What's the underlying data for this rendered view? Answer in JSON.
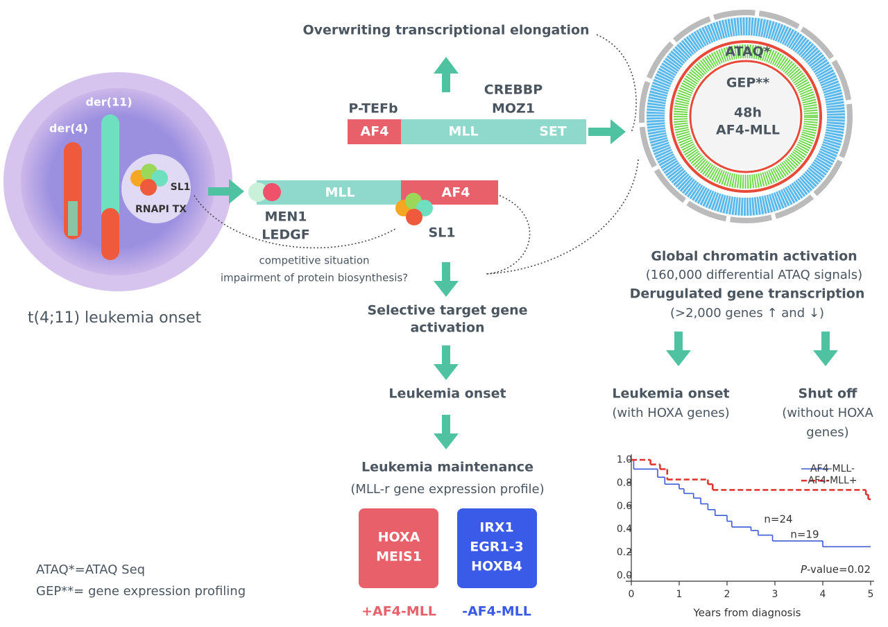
{
  "labels": {
    "elongation": "Overwriting transcriptional elongation",
    "crebbp": "CREBBP",
    "moz1": "MOZ1",
    "ptefb": "P-TEFb",
    "fusion1": [
      "AF4",
      "MLL",
      "SET"
    ],
    "fusion2": [
      "MLL",
      "AF4"
    ],
    "men1": "MEN1",
    "ledgf": "LEDGF",
    "sl1": "SL1",
    "der11": "der(11)",
    "der4": "der(4)",
    "nucleolus_sl1": "SL1",
    "rnapi": "RNAPI TX",
    "competitive": [
      "competitive situation",
      "impairment of protein biosynthesis?"
    ],
    "onset_cell": "t(4;11) leukemia onset",
    "selective": [
      "Selective target gene",
      "activation"
    ],
    "leukemia_onset": "Leukemia onset",
    "maintenance": "Leukemia maintenance",
    "profile": "(MLL-r gene expression profile)",
    "box_plus": [
      "HOXA",
      "MEIS1"
    ],
    "box_minus": [
      "IRX1",
      "EGR1-3",
      "HOXB4"
    ],
    "plus": "+AF4-MLL",
    "minus": "-AF4-MLL",
    "footnotes": [
      "ATAQ*=ATAQ Seq",
      "GEP**= gene expression profiling"
    ],
    "circos": [
      "ATAQ*",
      "GEP**",
      "48h",
      "AF4-MLL"
    ],
    "global": [
      "Global chromatin activation",
      "(160,000 differential ATAQ signals)",
      "Derugulated gene transcription",
      "(>2,000 genes ↑ and ↓)"
    ],
    "with_hoxa": [
      "Leukemia onset",
      "(with HOXA genes)"
    ],
    "without_hoxa": [
      "Shut off",
      "(without HOXA",
      "genes)"
    ]
  },
  "chart_data": {
    "type": "step",
    "xlabel": "Years from diagnosis",
    "xlim": [
      0,
      5
    ],
    "xticks": [
      0,
      1,
      2,
      3,
      4,
      5
    ],
    "ylim": [
      0,
      1
    ],
    "yticks": [
      {
        "value": 0,
        "label": "0.0"
      },
      0.2,
      0.4,
      0.6,
      0.8,
      {
        "value": 1,
        "label": "1.0"
      }
    ],
    "legend": "top-right",
    "series": [
      {
        "name": "AF4-MLL-",
        "color": "#3b5bd6",
        "dash": false,
        "x": [
          0,
          0.05,
          0.55,
          0.7,
          1.0,
          1.1,
          1.3,
          1.45,
          1.6,
          1.75,
          2.0,
          2.1,
          2.5,
          2.65,
          2.95,
          4.0
        ],
        "values": [
          1.0,
          0.92,
          0.85,
          0.79,
          0.75,
          0.71,
          0.67,
          0.62,
          0.57,
          0.52,
          0.47,
          0.42,
          0.39,
          0.35,
          0.3,
          0.25
        ]
      },
      {
        "name": "AF4-MLL+",
        "color": "#e0302a",
        "dash": true,
        "x": [
          0,
          0.4,
          0.6,
          0.75,
          1.6,
          1.7,
          4.9,
          4.95
        ],
        "values": [
          1.0,
          0.96,
          0.92,
          0.83,
          0.79,
          0.74,
          0.7,
          0.66
        ]
      }
    ],
    "annotations": [
      "n=24",
      "n=19"
    ],
    "pvalue": {
      "italic": "P",
      "text": "-value=0.02"
    }
  }
}
